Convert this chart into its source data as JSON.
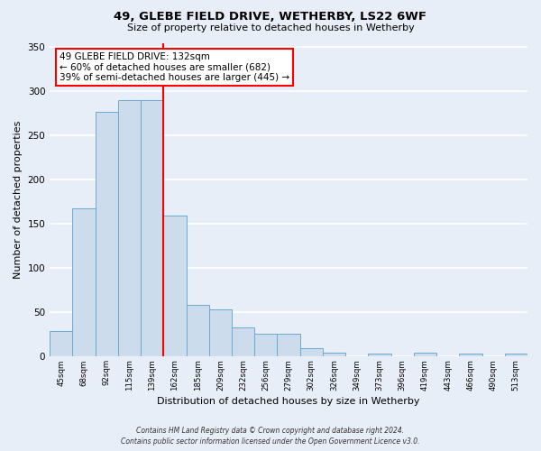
{
  "title": "49, GLEBE FIELD DRIVE, WETHERBY, LS22 6WF",
  "subtitle": "Size of property relative to detached houses in Wetherby",
  "xlabel": "Distribution of detached houses by size in Wetherby",
  "ylabel": "Number of detached properties",
  "bin_labels": [
    "45sqm",
    "68sqm",
    "92sqm",
    "115sqm",
    "139sqm",
    "162sqm",
    "185sqm",
    "209sqm",
    "232sqm",
    "256sqm",
    "279sqm",
    "302sqm",
    "326sqm",
    "349sqm",
    "373sqm",
    "396sqm",
    "419sqm",
    "443sqm",
    "466sqm",
    "490sqm",
    "513sqm"
  ],
  "bar_values": [
    29,
    168,
    277,
    290,
    290,
    160,
    59,
    53,
    33,
    26,
    26,
    10,
    5,
    0,
    3,
    0,
    4,
    0,
    3,
    0,
    3
  ],
  "bar_color": "#cddcec",
  "bar_edge_color": "#6aaad4",
  "red_line_bin": 4,
  "ylim": [
    0,
    355
  ],
  "yticks": [
    0,
    50,
    100,
    150,
    200,
    250,
    300,
    350
  ],
  "annotation_text": "49 GLEBE FIELD DRIVE: 132sqm\n← 60% of detached houses are smaller (682)\n39% of semi-detached houses are larger (445) →",
  "annotation_box_color": "white",
  "annotation_box_edge_color": "red",
  "footer_line1": "Contains HM Land Registry data © Crown copyright and database right 2024.",
  "footer_line2": "Contains public sector information licensed under the Open Government Licence v3.0.",
  "background_color": "#e8eef8",
  "grid_color": "#ffffff"
}
